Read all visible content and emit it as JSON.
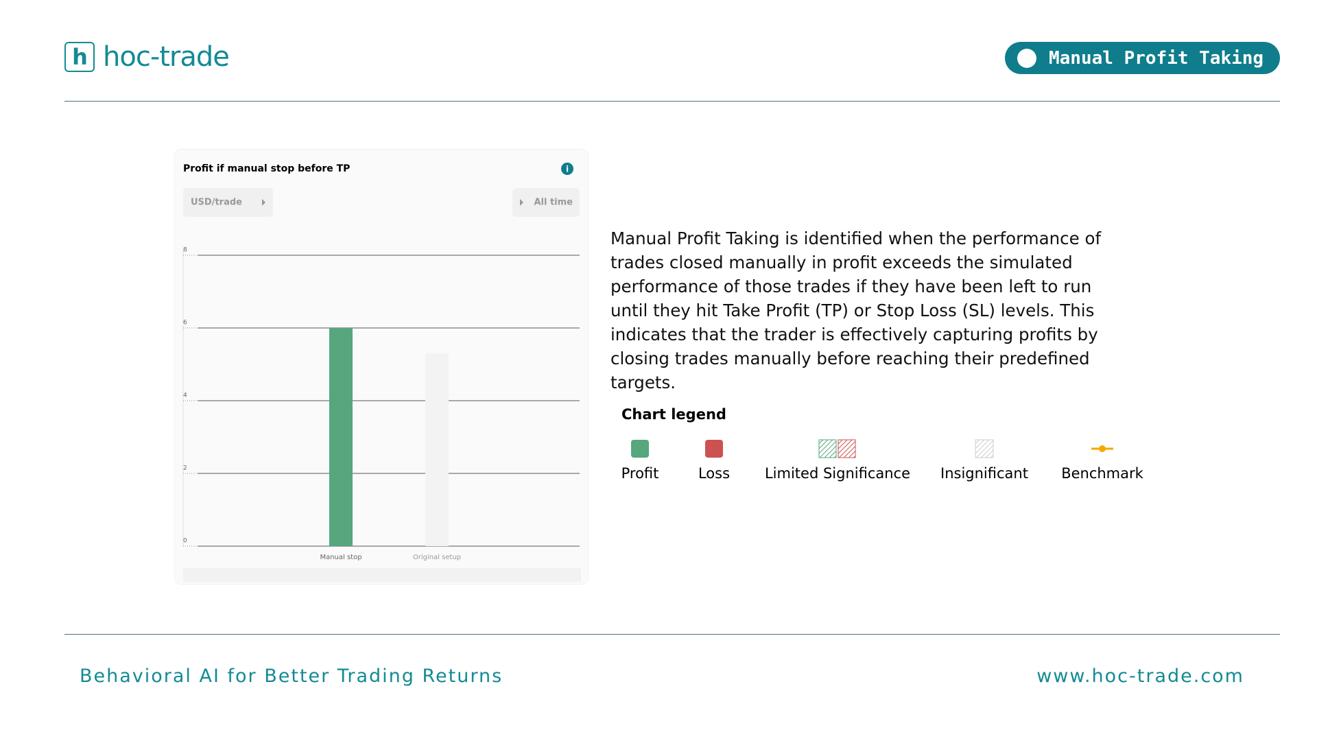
{
  "header": {
    "logo": "hoc-trade",
    "badge": "Manual Profit Taking"
  },
  "chart_data": {
    "type": "bar",
    "title": "Profit if manual stop before TP",
    "controls": [
      "USD/trade",
      "All time"
    ],
    "categories": [
      "Manual stop",
      "Original setup"
    ],
    "values": [
      6,
      5.3
    ],
    "colors": [
      "#57a67e",
      "#f3f3f3"
    ],
    "ylim": [
      0,
      8
    ],
    "yticks": [
      0,
      2,
      4,
      6,
      8
    ],
    "grid": true
  },
  "description": "Manual Profit Taking is identified when the performance of trades closed manually in profit exceeds the simulated performance of those trades if they have been left to run until they hit Take Profit (TP) or Stop Loss (SL) levels. This indicates that the trader is effectively capturing profits by closing trades manually before reaching their predefined targets.",
  "legend": {
    "title": "Chart legend",
    "items": [
      "Profit",
      "Loss",
      "Limited Significance",
      "Insignificant",
      "Benchmark"
    ]
  },
  "footer": {
    "tagline": "Behavioral AI for Better Trading Returns",
    "url": "www.hoc-trade.com"
  }
}
